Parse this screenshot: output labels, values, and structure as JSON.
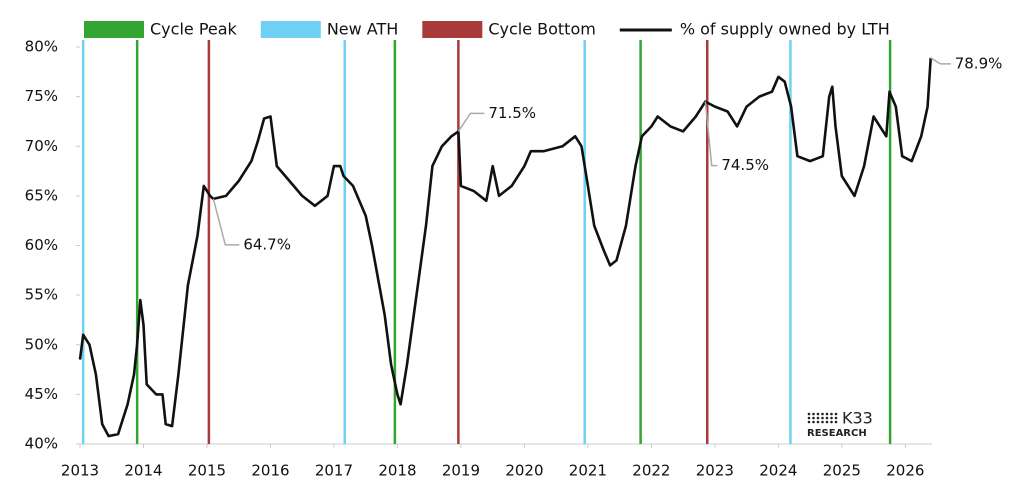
{
  "chart_data": {
    "type": "line",
    "xlim": [
      2013,
      2026.42
    ],
    "xticks": [
      2013,
      2014,
      2015,
      2016,
      2017,
      2018,
      2019,
      2020,
      2021,
      2022,
      2023,
      2024,
      2025,
      2026
    ],
    "ylim": [
      40,
      80
    ],
    "yticks": [
      {
        "value": 40,
        "label": "40%"
      },
      {
        "value": 45,
        "label": "45%"
      },
      {
        "value": 50,
        "label": "50%"
      },
      {
        "value": 55,
        "label": "55%"
      },
      {
        "value": 60,
        "label": "60%"
      },
      {
        "value": 65,
        "label": "65%"
      },
      {
        "value": 70,
        "label": "70%"
      },
      {
        "value": 75,
        "label": "75%"
      },
      {
        "value": 80,
        "label": "80%"
      }
    ],
    "events": [
      {
        "name": "Cycle Peak",
        "color": "#33a532",
        "x": [
          2013.9,
          2017.96,
          2021.83,
          2025.76
        ]
      },
      {
        "name": "New ATH",
        "color": "#6fd0f5",
        "x": [
          2013.05,
          2017.17,
          2020.95,
          2024.19
        ]
      },
      {
        "name": "Cycle Bottom",
        "color": "#a83a3a",
        "x": [
          2015.03,
          2018.96,
          2022.88
        ]
      }
    ],
    "series": [
      {
        "name": "% of supply owned by LTH",
        "color": "#111111",
        "x": [
          2013.0,
          2013.05,
          2013.15,
          2013.25,
          2013.35,
          2013.45,
          2013.6,
          2013.75,
          2013.85,
          2013.9,
          2013.95,
          2014.0,
          2014.05,
          2014.2,
          2014.3,
          2014.35,
          2014.45,
          2014.55,
          2014.7,
          2014.85,
          2014.95,
          2015.05,
          2015.1,
          2015.3,
          2015.5,
          2015.7,
          2015.8,
          2015.9,
          2016.0,
          2016.1,
          2016.3,
          2016.5,
          2016.7,
          2016.9,
          2017.0,
          2017.1,
          2017.15,
          2017.3,
          2017.5,
          2017.6,
          2017.8,
          2017.9,
          2018.0,
          2018.05,
          2018.15,
          2018.3,
          2018.45,
          2018.55,
          2018.7,
          2018.85,
          2018.96,
          2019.0,
          2019.2,
          2019.4,
          2019.5,
          2019.6,
          2019.8,
          2020.0,
          2020.1,
          2020.3,
          2020.6,
          2020.8,
          2020.9,
          2021.0,
          2021.1,
          2021.25,
          2021.35,
          2021.45,
          2021.6,
          2021.75,
          2021.85,
          2022.0,
          2022.1,
          2022.3,
          2022.5,
          2022.7,
          2022.85,
          2023.0,
          2023.2,
          2023.35,
          2023.5,
          2023.7,
          2023.9,
          2024.0,
          2024.1,
          2024.2,
          2024.3,
          2024.5,
          2024.7,
          2024.8,
          2024.85,
          2024.9,
          2025.0,
          2025.2,
          2025.35,
          2025.5,
          2025.6,
          2025.7,
          2025.75,
          2025.85,
          2025.95,
          2026.1,
          2026.25,
          2026.35,
          2026.4
        ],
        "values": [
          48.5,
          51,
          50,
          47,
          42,
          40.8,
          41,
          44,
          47,
          50,
          54.5,
          52,
          46,
          45,
          45,
          42,
          41.8,
          47,
          56,
          61,
          66,
          65,
          64.7,
          65,
          66.5,
          68.5,
          70.5,
          72.8,
          73,
          68,
          66.5,
          65,
          64,
          65,
          68,
          68,
          67,
          66,
          63,
          60,
          53,
          48,
          45,
          44,
          48,
          55,
          62,
          68,
          70,
          71,
          71.5,
          66,
          65.5,
          64.5,
          68,
          65,
          66,
          68,
          69.5,
          69.5,
          70,
          71,
          70,
          66,
          62,
          59.5,
          58,
          58.5,
          62,
          68,
          71,
          72,
          73,
          72,
          71.5,
          73,
          74.5,
          74,
          73.5,
          72,
          74,
          75,
          75.5,
          77,
          76.5,
          74,
          69,
          68.5,
          69,
          75,
          76,
          72,
          67,
          65,
          68,
          73,
          72,
          71,
          75.5,
          74,
          69,
          68.5,
          71,
          74,
          78.9
        ]
      }
    ],
    "annotations": [
      {
        "label": "64.7%",
        "x": 2015.1,
        "y": 64.7
      },
      {
        "label": "71.5%",
        "x": 2018.96,
        "y": 71.5
      },
      {
        "label": "74.5%",
        "x": 2022.85,
        "y": 74.5
      },
      {
        "label": "78.9%",
        "x": 2026.4,
        "y": 78.9
      }
    ],
    "watermark": {
      "brand": "K33",
      "subtitle": "RESEARCH"
    }
  }
}
